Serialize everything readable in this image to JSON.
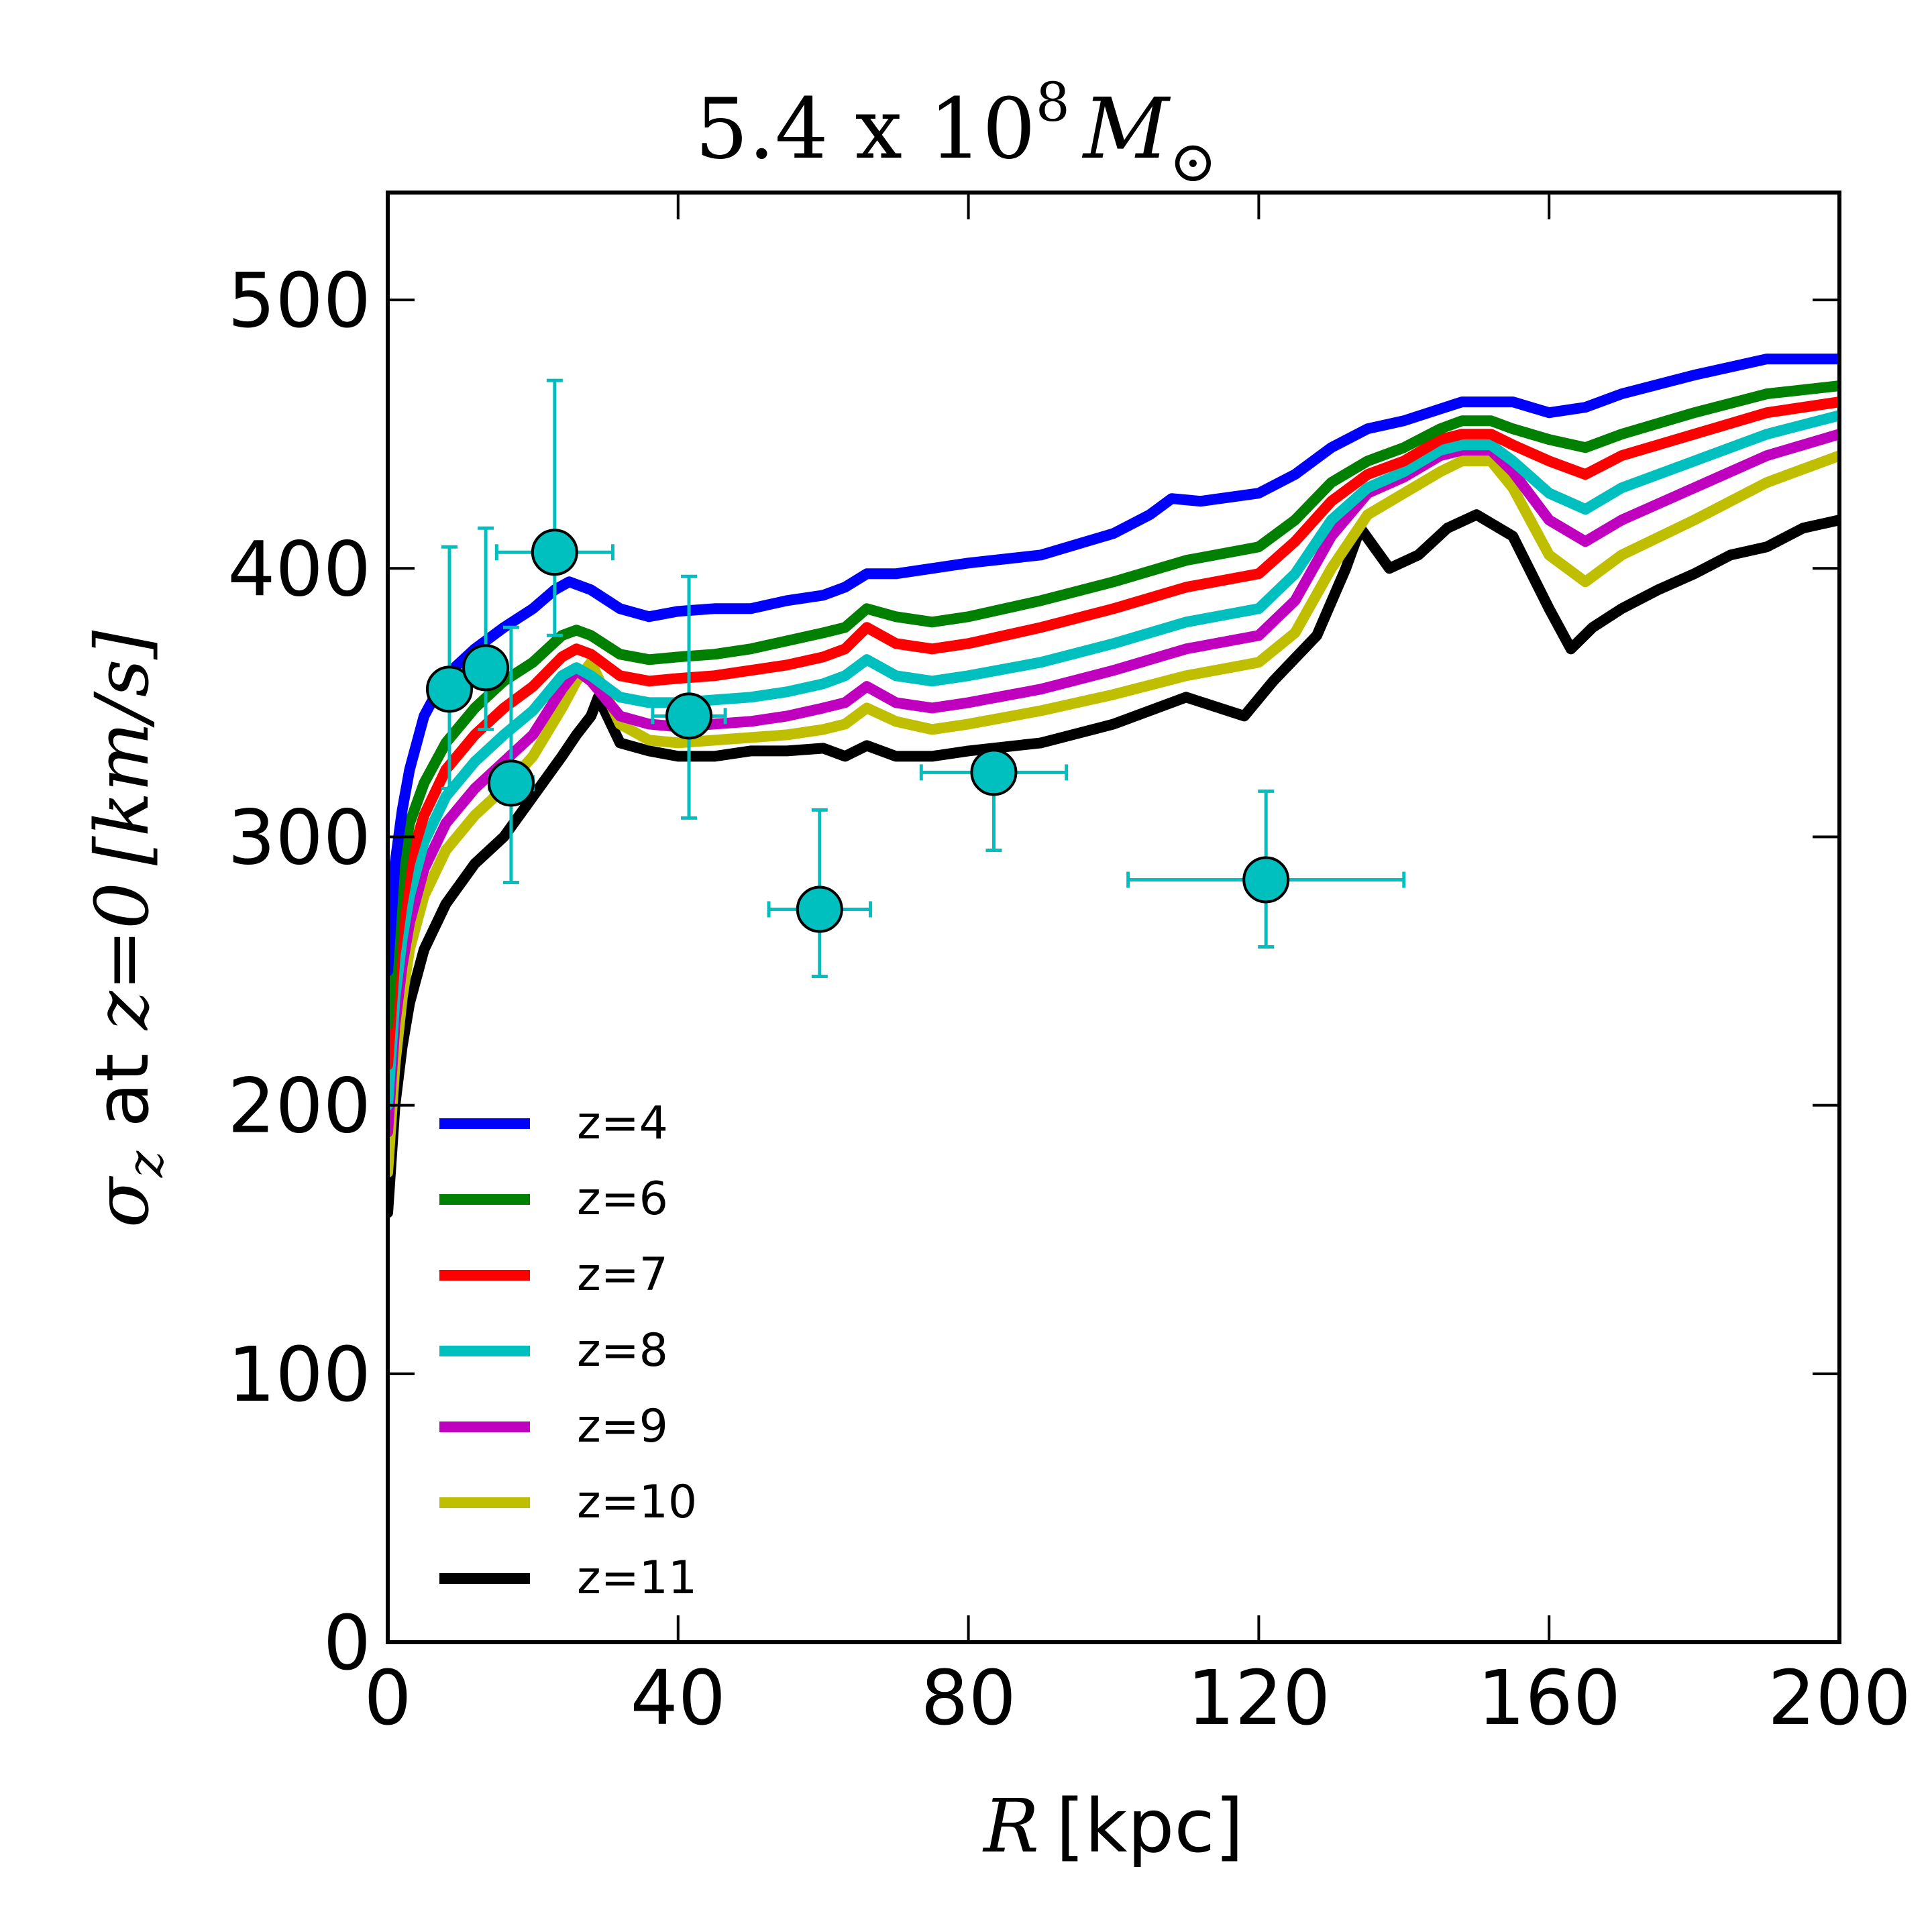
{
  "chart_data": {
    "type": "line",
    "title": {
      "number": "5.4 x 10",
      "exponent": "8",
      "unit": "M",
      "subscript": "⊙"
    },
    "xlabel": {
      "var": "R",
      "unit": "[kpc]"
    },
    "ylabel": {
      "sigma": "σ",
      "sigma_sub": "z",
      "middle": " at ",
      "cond": "z=0",
      "unit": "[km/s]"
    },
    "xlim": [
      0,
      200
    ],
    "ylim": [
      0,
      540
    ],
    "xticks": [
      "0",
      "40",
      "80",
      "120",
      "160",
      "200"
    ],
    "yticks": [
      "0",
      "100",
      "200",
      "300",
      "400",
      "500"
    ],
    "grid": false,
    "legend_position": "lower-left",
    "series": [
      {
        "name": "z=4",
        "color": "#0000ff",
        "x": [
          0,
          0.5,
          1,
          2,
          3,
          5,
          8,
          12,
          16,
          20,
          23,
          25,
          28,
          32,
          36,
          40,
          45,
          50,
          55,
          60,
          63,
          66,
          70,
          75,
          80,
          90,
          100,
          105,
          108,
          112,
          120,
          125,
          130,
          135,
          140,
          148,
          155,
          160,
          165,
          170,
          180,
          190,
          200
        ],
        "y": [
          250,
          270,
          290,
          310,
          325,
          345,
          360,
          370,
          378,
          385,
          392,
          395,
          392,
          385,
          382,
          384,
          385,
          385,
          388,
          390,
          393,
          398,
          398,
          400,
          402,
          405,
          413,
          420,
          426,
          425,
          428,
          435,
          445,
          452,
          455,
          462,
          462,
          458,
          460,
          465,
          472,
          478,
          478
        ]
      },
      {
        "name": "z=6",
        "color": "#008000",
        "x": [
          0,
          0.5,
          1,
          2,
          3,
          5,
          8,
          12,
          16,
          20,
          24,
          26,
          28,
          32,
          36,
          40,
          45,
          50,
          55,
          60,
          63,
          66,
          70,
          75,
          80,
          90,
          100,
          110,
          120,
          125,
          130,
          135,
          140,
          145,
          148,
          152,
          155,
          160,
          165,
          170,
          180,
          190,
          200
        ],
        "y": [
          230,
          250,
          270,
          290,
          305,
          320,
          335,
          348,
          358,
          365,
          375,
          377,
          375,
          368,
          366,
          367,
          368,
          370,
          373,
          376,
          378,
          385,
          382,
          380,
          382,
          388,
          395,
          403,
          408,
          418,
          432,
          440,
          445,
          452,
          455,
          455,
          452,
          448,
          445,
          450,
          458,
          465,
          468
        ]
      },
      {
        "name": "z=7",
        "color": "#ff0000",
        "x": [
          0,
          0.5,
          1,
          2,
          3,
          5,
          8,
          12,
          16,
          20,
          24,
          26,
          28,
          32,
          36,
          40,
          45,
          50,
          55,
          60,
          63,
          66,
          70,
          75,
          80,
          90,
          100,
          110,
          120,
          125,
          130,
          135,
          140,
          145,
          148,
          152,
          155,
          160,
          165,
          170,
          180,
          190,
          200
        ],
        "y": [
          215,
          235,
          255,
          275,
          290,
          308,
          325,
          338,
          348,
          356,
          367,
          370,
          368,
          360,
          358,
          359,
          360,
          362,
          364,
          367,
          370,
          378,
          372,
          370,
          372,
          378,
          385,
          393,
          398,
          410,
          425,
          435,
          440,
          448,
          450,
          450,
          446,
          440,
          435,
          442,
          450,
          458,
          462
        ]
      },
      {
        "name": "z=8",
        "color": "#00bfbf",
        "x": [
          0,
          0.5,
          1,
          2,
          3,
          5,
          8,
          12,
          16,
          20,
          24,
          26,
          28,
          32,
          36,
          40,
          45,
          50,
          55,
          60,
          63,
          66,
          70,
          75,
          80,
          90,
          100,
          110,
          120,
          125,
          130,
          135,
          140,
          145,
          148,
          152,
          155,
          160,
          165,
          170,
          180,
          190,
          200
        ],
        "y": [
          200,
          220,
          240,
          262,
          278,
          298,
          315,
          328,
          338,
          347,
          360,
          363,
          360,
          352,
          350,
          350,
          351,
          352,
          354,
          357,
          360,
          366,
          360,
          358,
          360,
          365,
          372,
          380,
          385,
          398,
          418,
          430,
          436,
          444,
          446,
          446,
          440,
          428,
          422,
          430,
          440,
          450,
          457
        ]
      },
      {
        "name": "z=9",
        "color": "#bf00bf",
        "x": [
          0,
          0.5,
          1,
          2,
          3,
          5,
          8,
          12,
          16,
          20,
          24,
          26,
          28,
          32,
          36,
          40,
          45,
          50,
          55,
          60,
          63,
          66,
          70,
          75,
          80,
          90,
          100,
          110,
          120,
          125,
          130,
          135,
          140,
          145,
          148,
          152,
          155,
          160,
          165,
          170,
          180,
          190,
          200
        ],
        "y": [
          190,
          210,
          230,
          252,
          268,
          288,
          305,
          318,
          328,
          338,
          355,
          362,
          358,
          345,
          342,
          341,
          342,
          343,
          345,
          348,
          350,
          356,
          350,
          348,
          350,
          355,
          362,
          370,
          375,
          388,
          412,
          428,
          434,
          442,
          444,
          444,
          436,
          418,
          410,
          418,
          430,
          442,
          450
        ]
      },
      {
        "name": "z=10",
        "color": "#bfbf00",
        "x": [
          0,
          0.5,
          1,
          2,
          3,
          5,
          8,
          12,
          16,
          20,
          24,
          26,
          28,
          32,
          36,
          40,
          45,
          50,
          55,
          60,
          63,
          66,
          70,
          75,
          80,
          90,
          100,
          110,
          120,
          125,
          130,
          135,
          140,
          145,
          148,
          152,
          155,
          160,
          165,
          170,
          180,
          190,
          200
        ],
        "y": [
          175,
          195,
          215,
          240,
          258,
          278,
          295,
          308,
          318,
          330,
          348,
          358,
          365,
          342,
          336,
          335,
          336,
          337,
          338,
          340,
          342,
          348,
          343,
          340,
          342,
          347,
          353,
          360,
          365,
          376,
          400,
          420,
          428,
          436,
          440,
          440,
          430,
          405,
          395,
          405,
          418,
          432,
          442
        ]
      },
      {
        "name": "z=11",
        "color": "#000000",
        "x": [
          0,
          0.5,
          1,
          2,
          3,
          5,
          8,
          12,
          16,
          20,
          24,
          26,
          28,
          29,
          32,
          36,
          40,
          45,
          50,
          55,
          60,
          63,
          66,
          70,
          75,
          80,
          90,
          100,
          110,
          118,
          122,
          128,
          132,
          134,
          138,
          142,
          146,
          150,
          155,
          160,
          163,
          166,
          170,
          175,
          180,
          185,
          190,
          195,
          200
        ],
        "y": [
          160,
          180,
          200,
          222,
          238,
          258,
          275,
          290,
          300,
          315,
          330,
          338,
          345,
          352,
          335,
          332,
          330,
          330,
          332,
          332,
          333,
          330,
          334,
          330,
          330,
          332,
          335,
          342,
          352,
          345,
          358,
          375,
          400,
          415,
          400,
          405,
          415,
          420,
          412,
          385,
          370,
          378,
          385,
          392,
          398,
          405,
          408,
          415,
          418
        ]
      }
    ],
    "observations": {
      "color": "#00bfbf",
      "points": [
        {
          "x": 8.5,
          "y": 355,
          "xerr": 1.5,
          "ylow": 318,
          "yhigh": 408
        },
        {
          "x": 13.5,
          "y": 363,
          "xerr": 0,
          "ylow": 340,
          "yhigh": 415
        },
        {
          "x": 17,
          "y": 320,
          "xerr": 3,
          "ylow": 283,
          "yhigh": 378
        },
        {
          "x": 23,
          "y": 406,
          "xerr": 8,
          "ylow": 375,
          "yhigh": 470
        },
        {
          "x": 41.5,
          "y": 345,
          "xerr": 5,
          "ylow": 307,
          "yhigh": 397
        },
        {
          "x": 59.5,
          "y": 273,
          "xerr": 7,
          "ylow": 248,
          "yhigh": 310
        },
        {
          "x": 83.5,
          "y": 324,
          "xerr": 10,
          "ylow": 295,
          "yhigh": 324
        },
        {
          "x": 121,
          "y": 284,
          "xerr": 19,
          "ylow": 259,
          "yhigh": 317
        }
      ]
    }
  }
}
